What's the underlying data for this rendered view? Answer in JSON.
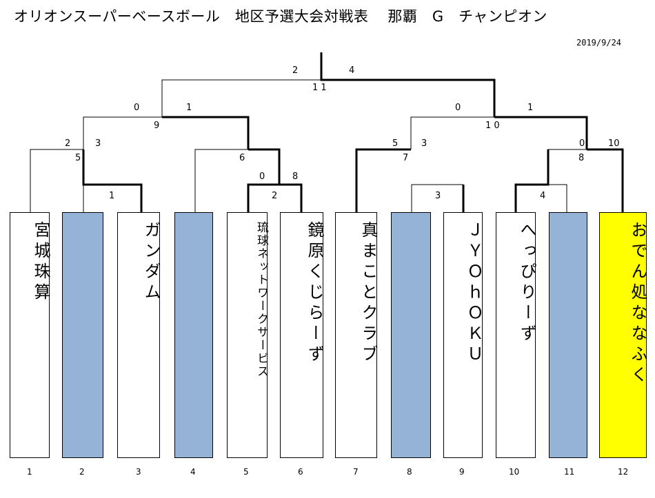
{
  "title": "オリオンスーパーベースボール　地区予選大会対戦表",
  "champion_heading": "那覇　G　チャンピオン",
  "date": "2019/9/24",
  "teams": [
    {
      "num": "1",
      "name": "宮城珠算",
      "empty": false
    },
    {
      "num": "2",
      "name": "",
      "empty": true
    },
    {
      "num": "3",
      "name": "ガンダム",
      "empty": false
    },
    {
      "num": "4",
      "name": "",
      "empty": true
    },
    {
      "num": "5",
      "name": "琉球ネットワークサービス",
      "empty": false
    },
    {
      "num": "6",
      "name": "鏡原くじらーず",
      "empty": false
    },
    {
      "num": "7",
      "name": "真まことクラブ",
      "empty": false
    },
    {
      "num": "8",
      "name": "",
      "empty": true
    },
    {
      "num": "9",
      "name": "ＪＹＯｈＯＫＵ",
      "empty": false
    },
    {
      "num": "10",
      "name": "へっぴりーず",
      "empty": false
    },
    {
      "num": "11",
      "name": "",
      "empty": true
    },
    {
      "num": "12",
      "name": "おでん処ななふく",
      "empty": false
    }
  ],
  "scores": {
    "final": {
      "left": "2",
      "right": "4",
      "extra": "1 1"
    },
    "semi_left": {
      "left": "0",
      "right": "1",
      "extra": "9"
    },
    "semi_right": {
      "left": "0",
      "right": "1",
      "extra": "1 0"
    },
    "qf1": {
      "left": "2",
      "right": "3",
      "extra": "5"
    },
    "qf2": {
      "extra": "6"
    },
    "qf3": {
      "left": "5",
      "right": "3",
      "extra": "7"
    },
    "qf4": {
      "left": "0",
      "right": "10",
      "extra": "8"
    },
    "r1_a": {
      "extra": "1"
    },
    "r1_b": {
      "left": "0",
      "right": "8",
      "extra": "2"
    },
    "r1_c": {
      "extra": "3"
    },
    "r1_d": {
      "extra": "4"
    }
  },
  "colors": {
    "empty_slot": "#95b3d7",
    "champion": "#ffff00",
    "winner_line": "#000000"
  }
}
